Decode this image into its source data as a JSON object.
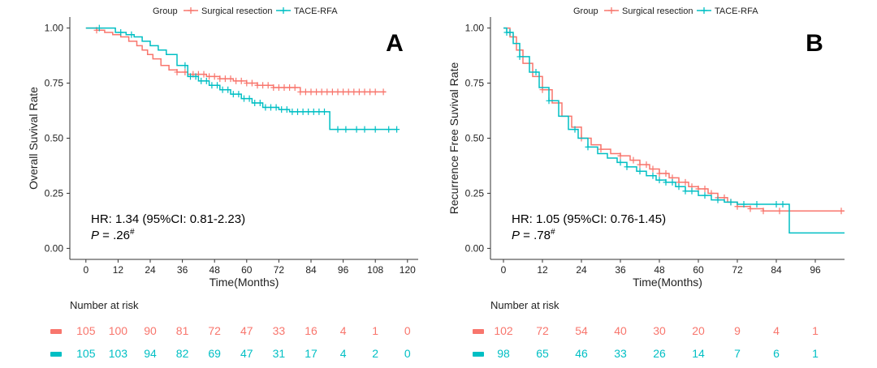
{
  "colors": {
    "surgical": "#F8766D",
    "tace": "#00BFC4",
    "axis": "#333333",
    "text": "#222222"
  },
  "legend": {
    "group_label": "Group",
    "surgical_label": "Surgical resection",
    "tace_label": "TACE-RFA"
  },
  "chart_data": [
    {
      "type": "line",
      "panel_letter": "A",
      "xlabel": "Time(Months)",
      "ylabel": "Overall Suvival Rate",
      "xlim": [
        -6,
        124
      ],
      "ylim": [
        -0.05,
        1.05
      ],
      "xticks": [
        0,
        12,
        24,
        36,
        48,
        60,
        72,
        84,
        96,
        108,
        120
      ],
      "yticks": [
        0,
        0.25,
        0.5,
        0.75,
        1.0
      ],
      "ytick_labels": [
        "0.00",
        "0.25",
        "0.50",
        "0.75",
        "1.00"
      ],
      "hr_text": "HR: 1.34 (95%CI: 0.81-2.23)",
      "p_prefix": "P",
      "p_value": " = .26",
      "p_mark": "#",
      "series": [
        {
          "name": "Surgical resection",
          "color_key": "surgical",
          "x": [
            0,
            4,
            7,
            10,
            13,
            16,
            19,
            21,
            23,
            25,
            28,
            31,
            34,
            38,
            45,
            50,
            55,
            60,
            64,
            70,
            80,
            112
          ],
          "y": [
            1.0,
            0.99,
            0.98,
            0.97,
            0.96,
            0.94,
            0.92,
            0.9,
            0.88,
            0.86,
            0.83,
            0.81,
            0.8,
            0.79,
            0.78,
            0.77,
            0.76,
            0.75,
            0.74,
            0.73,
            0.71,
            0.71
          ],
          "censor_x": [
            4,
            34,
            37,
            40,
            42,
            44,
            46,
            48,
            50,
            52,
            54,
            56,
            58,
            60,
            62,
            64,
            66,
            68,
            70,
            72,
            74,
            76,
            78,
            80,
            82,
            84,
            86,
            88,
            90,
            92,
            94,
            96,
            98,
            100,
            102,
            104,
            106,
            108,
            111
          ]
        },
        {
          "name": "TACE-RFA",
          "color_key": "tace",
          "x": [
            0,
            11,
            15,
            18,
            21,
            24,
            27,
            30,
            34,
            38,
            42,
            46,
            50,
            54,
            58,
            62,
            66,
            72,
            76,
            91,
            116
          ],
          "y": [
            1.0,
            0.98,
            0.97,
            0.96,
            0.94,
            0.92,
            0.9,
            0.88,
            0.83,
            0.78,
            0.76,
            0.74,
            0.72,
            0.7,
            0.68,
            0.66,
            0.64,
            0.63,
            0.62,
            0.54,
            0.54
          ],
          "censor_x": [
            5,
            13,
            17,
            37,
            39,
            41,
            43,
            45,
            47,
            49,
            51,
            53,
            55,
            57,
            59,
            61,
            63,
            65,
            67,
            69,
            71,
            73,
            75,
            77,
            79,
            81,
            83,
            85,
            87,
            89,
            94,
            97,
            101,
            104,
            108,
            113,
            116
          ]
        }
      ]
    },
    {
      "type": "line",
      "panel_letter": "B",
      "xlabel": "Time(Months)",
      "ylabel": "Recurrence Free Suvival Rate",
      "xlim": [
        -4,
        105
      ],
      "ylim": [
        -0.05,
        1.05
      ],
      "xticks": [
        0,
        12,
        24,
        36,
        48,
        60,
        72,
        84,
        96
      ],
      "yticks": [
        0,
        0.25,
        0.5,
        0.75,
        1.0
      ],
      "ytick_labels": [
        "0.00",
        "0.25",
        "0.50",
        "0.75",
        "1.00"
      ],
      "hr_text": "HR: 1.05 (95%CI: 0.76-1.45)",
      "p_prefix": "P",
      "p_value": " = .78",
      "p_mark": "#",
      "series": [
        {
          "name": "Surgical resection",
          "color_key": "surgical",
          "x": [
            0,
            2,
            4,
            6,
            9,
            12,
            15,
            18,
            21,
            24,
            27,
            30,
            33,
            36,
            39,
            42,
            45,
            48,
            51,
            54,
            57,
            60,
            63,
            66,
            69,
            72,
            76,
            80,
            86,
            105
          ],
          "y": [
            1.0,
            0.96,
            0.9,
            0.84,
            0.78,
            0.72,
            0.66,
            0.6,
            0.55,
            0.5,
            0.47,
            0.45,
            0.43,
            0.42,
            0.4,
            0.38,
            0.36,
            0.34,
            0.32,
            0.3,
            0.28,
            0.27,
            0.25,
            0.23,
            0.21,
            0.19,
            0.18,
            0.17,
            0.17,
            0.17
          ],
          "censor_x": [
            3,
            12,
            24,
            30,
            36,
            40,
            42,
            44,
            46,
            48,
            50,
            52,
            54,
            56,
            58,
            60,
            62,
            64,
            66,
            68,
            70,
            72,
            76,
            80,
            85,
            104
          ]
        },
        {
          "name": "TACE-RFA",
          "color_key": "tace",
          "x": [
            0,
            1,
            3,
            5,
            8,
            11,
            14,
            17,
            20,
            23,
            26,
            29,
            32,
            35,
            38,
            41,
            44,
            47,
            50,
            53,
            56,
            60,
            64,
            68,
            72,
            80,
            88,
            105
          ],
          "y": [
            1.0,
            0.98,
            0.93,
            0.87,
            0.8,
            0.73,
            0.67,
            0.6,
            0.54,
            0.5,
            0.46,
            0.43,
            0.41,
            0.39,
            0.37,
            0.35,
            0.33,
            0.31,
            0.3,
            0.28,
            0.26,
            0.24,
            0.22,
            0.21,
            0.2,
            0.2,
            0.07,
            0.07
          ],
          "censor_x": [
            1,
            2,
            5,
            10,
            14,
            22,
            26,
            36,
            38,
            42,
            46,
            48,
            50,
            52,
            54,
            56,
            58,
            62,
            66,
            70,
            74,
            78,
            84,
            86
          ]
        }
      ]
    }
  ],
  "risk_tables": [
    {
      "title": "Number at risk",
      "rows": [
        {
          "color_key": "surgical",
          "values": [
            "105",
            "100",
            "90",
            "81",
            "72",
            "47",
            "33",
            "16",
            "4",
            "1",
            "0"
          ]
        },
        {
          "color_key": "tace",
          "values": [
            "105",
            "103",
            "94",
            "82",
            "69",
            "47",
            "31",
            "17",
            "4",
            "2",
            "0"
          ]
        }
      ]
    },
    {
      "title": "Number at risk",
      "rows": [
        {
          "color_key": "surgical",
          "values": [
            "102",
            "72",
            "54",
            "40",
            "30",
            "20",
            "9",
            "4",
            "1"
          ]
        },
        {
          "color_key": "tace",
          "values": [
            "98",
            "65",
            "46",
            "33",
            "26",
            "14",
            "7",
            "6",
            "1"
          ]
        }
      ]
    }
  ]
}
